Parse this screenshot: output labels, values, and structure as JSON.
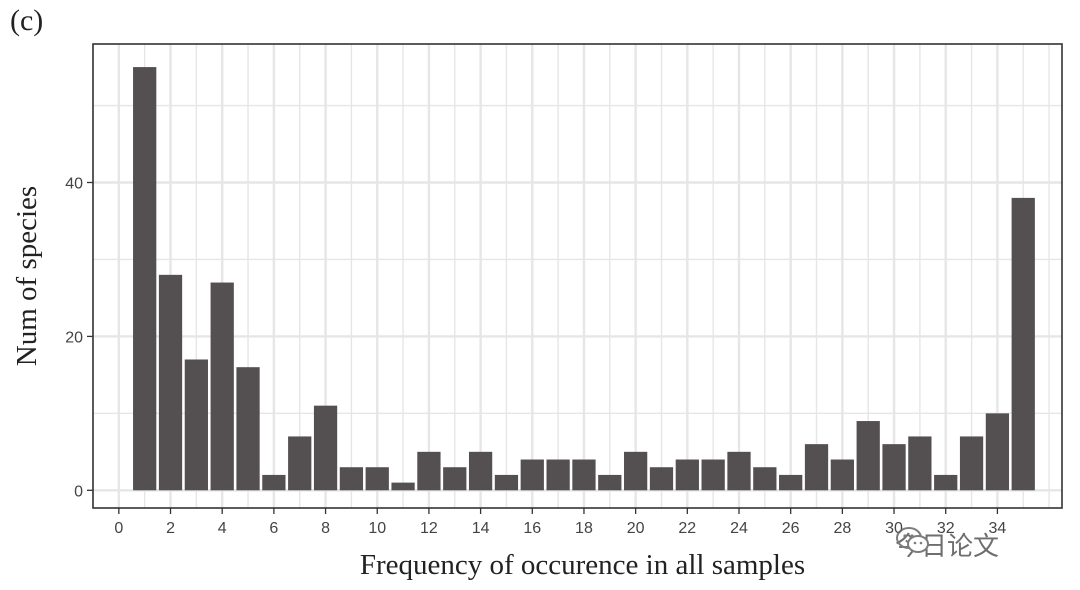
{
  "chart_data": {
    "type": "bar",
    "panel_label": "(c)",
    "xlabel": "Frequency of occurence in all samples",
    "ylabel": "Num of species",
    "xlim": [
      -1,
      36.5
    ],
    "ylim": [
      -2.3,
      58
    ],
    "x_ticks": [
      0,
      2,
      4,
      6,
      8,
      10,
      12,
      14,
      16,
      18,
      20,
      22,
      24,
      26,
      28,
      30,
      32,
      34
    ],
    "y_ticks": [
      0,
      20,
      40
    ],
    "grid": true,
    "legend": "none",
    "bar_color": "#545051",
    "panel_border_color": "#333333",
    "grid_color": "#e6e6e6",
    "x": [
      1,
      2,
      3,
      4,
      5,
      6,
      7,
      8,
      9,
      10,
      11,
      12,
      13,
      14,
      15,
      16,
      17,
      18,
      19,
      20,
      21,
      22,
      23,
      24,
      25,
      26,
      27,
      28,
      29,
      30,
      31,
      32,
      33,
      34,
      35
    ],
    "values": [
      55,
      28,
      17,
      27,
      16,
      2,
      7,
      11,
      3,
      3,
      1,
      5,
      3,
      5,
      2,
      4,
      4,
      4,
      2,
      5,
      3,
      4,
      4,
      5,
      3,
      2,
      6,
      4,
      9,
      6,
      7,
      2,
      7,
      10,
      38
    ]
  },
  "watermark": {
    "text": "今日论文",
    "icon": "wechat-icon"
  }
}
